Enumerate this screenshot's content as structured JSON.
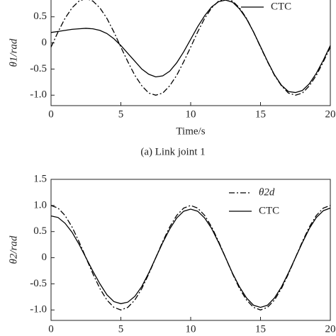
{
  "chart_data": [
    {
      "type": "line",
      "ylabel": "θ1/rad",
      "xlabel": "Time/s",
      "caption": "(a) Link joint 1",
      "x": [
        0,
        0.5,
        1,
        1.5,
        2,
        2.5,
        3,
        3.5,
        4,
        4.5,
        5,
        5.5,
        6,
        6.5,
        7,
        7.5,
        8,
        8.5,
        9,
        9.5,
        10,
        10.5,
        11,
        11.5,
        12,
        12.5,
        13,
        13.5,
        14,
        14.5,
        15,
        15.5,
        16,
        16.5,
        17,
        17.5,
        18,
        18.5,
        19,
        19.5,
        20
      ],
      "series": [
        {
          "color": "#000000",
          "dash": "dashdot",
          "values": [
            -0.08,
            0.21,
            0.47,
            0.67,
            0.8,
            0.85,
            0.8,
            0.67,
            0.47,
            0.21,
            -0.08,
            -0.36,
            -0.62,
            -0.82,
            -0.96,
            -1.0,
            -0.96,
            -0.82,
            -0.62,
            -0.36,
            -0.08,
            0.21,
            0.47,
            0.67,
            0.8,
            0.85,
            0.8,
            0.67,
            0.47,
            0.21,
            -0.08,
            -0.36,
            -0.62,
            -0.82,
            -0.96,
            -1.0,
            -0.96,
            -0.82,
            -0.62,
            -0.36,
            -0.08
          ]
        },
        {
          "name": "CTC",
          "color": "#000000",
          "dash": "solid",
          "values": [
            0.2,
            0.22,
            0.24,
            0.26,
            0.27,
            0.28,
            0.27,
            0.24,
            0.18,
            0.08,
            -0.05,
            -0.2,
            -0.35,
            -0.5,
            -0.6,
            -0.65,
            -0.63,
            -0.54,
            -0.38,
            -0.17,
            0.07,
            0.31,
            0.52,
            0.69,
            0.79,
            0.82,
            0.78,
            0.65,
            0.46,
            0.21,
            -0.07,
            -0.35,
            -0.61,
            -0.81,
            -0.93,
            -0.95,
            -0.91,
            -0.78,
            -0.58,
            -0.33,
            -0.05
          ]
        }
      ],
      "xlim": [
        0,
        20
      ],
      "xticks": [
        0,
        5,
        10,
        15,
        20
      ],
      "ylim": [
        -1.2,
        1.5
      ],
      "yticks": [
        {
          "value": -1,
          "label": "-1.0"
        },
        -0.5,
        0,
        0.5
      ]
    },
    {
      "type": "line",
      "ylabel": "θ2/rad",
      "x": [
        0,
        0.5,
        1,
        1.5,
        2,
        2.5,
        3,
        3.5,
        4,
        4.5,
        5,
        5.5,
        6,
        6.5,
        7,
        7.5,
        8,
        8.5,
        9,
        9.5,
        10,
        10.5,
        11,
        11.5,
        12,
        12.5,
        13,
        13.5,
        14,
        14.5,
        15,
        15.5,
        16,
        16.5,
        17,
        17.5,
        18,
        18.5,
        19,
        19.5,
        20
      ],
      "series": [
        {
          "name": "θ2d",
          "color": "#000000",
          "dash": "dashdot",
          "values": [
            1,
            0.95,
            0.81,
            0.59,
            0.31,
            0,
            -0.31,
            -0.59,
            -0.81,
            -0.95,
            -1,
            -0.95,
            -0.81,
            -0.59,
            -0.31,
            0,
            0.31,
            0.59,
            0.81,
            0.95,
            1,
            0.95,
            0.81,
            0.59,
            0.31,
            0,
            -0.31,
            -0.59,
            -0.81,
            -0.95,
            -1,
            -0.95,
            -0.81,
            -0.59,
            -0.31,
            0,
            0.31,
            0.59,
            0.81,
            0.95,
            1
          ]
        },
        {
          "name": "CTC",
          "color": "#000000",
          "dash": "solid",
          "values": [
            0.8,
            0.77,
            0.66,
            0.49,
            0.26,
            0.0,
            -0.26,
            -0.5,
            -0.71,
            -0.84,
            -0.88,
            -0.85,
            -0.74,
            -0.55,
            -0.29,
            0.0,
            0.29,
            0.55,
            0.76,
            0.89,
            0.93,
            0.89,
            0.76,
            0.56,
            0.29,
            0.0,
            -0.3,
            -0.56,
            -0.77,
            -0.91,
            -0.95,
            -0.91,
            -0.77,
            -0.56,
            -0.29,
            0.0,
            0.29,
            0.56,
            0.77,
            0.9,
            0.95
          ]
        }
      ],
      "xlim": [
        0,
        20
      ],
      "xticks": [
        0,
        5,
        10,
        15,
        20
      ],
      "ylim": [
        -1.2,
        1.5
      ],
      "yticks": [
        {
          "value": -1,
          "label": "-1.0"
        },
        -0.5,
        0,
        0.5,
        {
          "value": 1,
          "label": "1.0"
        },
        1.5
      ]
    }
  ]
}
